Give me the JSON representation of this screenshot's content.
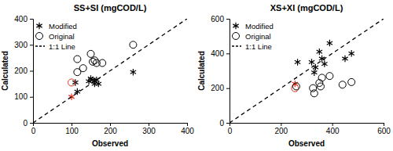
{
  "chart_data": [
    {
      "type": "scatter",
      "title": "SS+SI (mgCOD/L)",
      "x_label": "Observed",
      "y_label": "Calculated",
      "xlim": [
        0,
        400
      ],
      "ylim": [
        0,
        400
      ],
      "xticks": [
        0,
        100,
        200,
        300,
        400
      ],
      "yticks": [
        0,
        100,
        200,
        300,
        400
      ],
      "legend": "upper left",
      "series": [
        {
          "name": "Modified",
          "marker": "asterisk",
          "color": "#000000",
          "colors": [
            "#e0301e",
            "#000000",
            "#000000",
            "#000000",
            "#000000",
            "#000000",
            "#000000",
            "#000000",
            "#000000",
            "#000000",
            "#000000"
          ],
          "x": [
            100,
            115,
            110,
            145,
            150,
            155,
            160,
            160,
            165,
            170,
            260
          ],
          "values": [
            100,
            120,
            155,
            160,
            170,
            165,
            160,
            150,
            165,
            150,
            195
          ]
        },
        {
          "name": "Original",
          "marker": "circle",
          "color": "#000000",
          "colors": [
            "#e0301e",
            "#000000",
            "#000000",
            "#000000",
            "#000000",
            "#000000",
            "#000000",
            "#000000",
            "#000000",
            "#000000"
          ],
          "x": [
            100,
            115,
            115,
            130,
            150,
            155,
            160,
            165,
            180,
            260
          ],
          "values": [
            155,
            195,
            245,
            210,
            265,
            235,
            240,
            230,
            230,
            300
          ]
        },
        {
          "name": "1:1 Line",
          "type": "line",
          "line_style": "dashed",
          "color": "#000000",
          "x": [
            0,
            400
          ],
          "values": [
            0,
            400
          ]
        }
      ]
    },
    {
      "type": "scatter",
      "title": "XS+XI (mgCOD/L)",
      "x_label": "Observed",
      "y_label": "Calculated",
      "xlim": [
        0,
        600
      ],
      "ylim": [
        0,
        600
      ],
      "xticks": [
        0,
        200,
        400,
        600
      ],
      "yticks": [
        0,
        200,
        400,
        600
      ],
      "legend": "upper left",
      "series": [
        {
          "name": "Modified",
          "marker": "asterisk",
          "color": "#000000",
          "colors": [
            "#e0301e",
            "#000000",
            "#000000",
            "#000000",
            "#000000",
            "#000000",
            "#000000",
            "#000000",
            "#000000",
            "#000000",
            "#000000"
          ],
          "x": [
            255,
            265,
            320,
            330,
            335,
            350,
            360,
            370,
            390,
            450,
            475
          ],
          "values": [
            225,
            350,
            350,
            290,
            320,
            410,
            370,
            340,
            460,
            370,
            400
          ]
        },
        {
          "name": "Original",
          "marker": "circle",
          "color": "#000000",
          "colors": [
            "#e0301e",
            "#000000",
            "#000000",
            "#000000",
            "#000000",
            "#000000",
            "#000000",
            "#000000",
            "#000000",
            "#000000"
          ],
          "x": [
            255,
            260,
            325,
            330,
            350,
            355,
            360,
            390,
            440,
            475
          ],
          "values": [
            200,
            210,
            200,
            170,
            230,
            210,
            260,
            270,
            220,
            235
          ]
        },
        {
          "name": "1:1 Line",
          "type": "line",
          "line_style": "dashed",
          "color": "#000000",
          "x": [
            0,
            600
          ],
          "values": [
            0,
            600
          ]
        }
      ]
    }
  ]
}
